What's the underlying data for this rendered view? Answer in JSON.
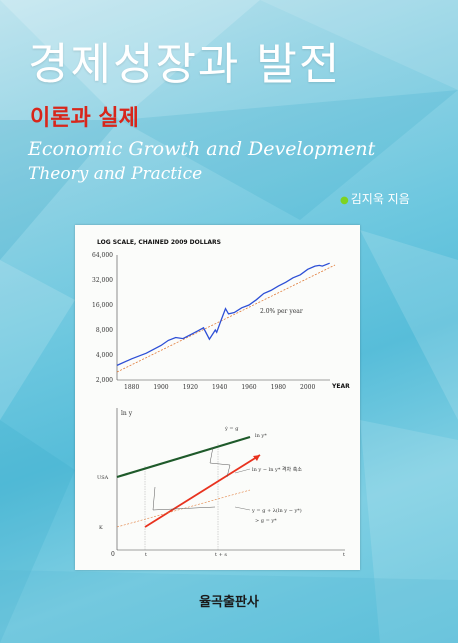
{
  "cover": {
    "title": "경제성장과 발전",
    "subtitle": "이론과 실제",
    "english_title": "Economic Growth and Development",
    "english_subtitle": "Theory and Practice",
    "author": "김지욱 지음",
    "publisher": "율곡출판사",
    "colors": {
      "background": "#5fc2dc",
      "subtitle": "#d8261b",
      "author_dot": "#7ed321"
    }
  },
  "figure_top": {
    "title": "LOG SCALE, CHAINED 2009 DOLLARS",
    "y_ticks": [
      "64,000",
      "32,000",
      "16,000",
      "8,000",
      "4,000",
      "2,000"
    ],
    "x_ticks": [
      "1880",
      "1900",
      "1920",
      "1940",
      "1960",
      "1980",
      "2000"
    ],
    "x_label": "YEAR",
    "trend_label": "2.0% per year"
  },
  "figure_bottom": {
    "y_label": "ln y",
    "label_growth": "ẏ = g",
    "label_frontier": "ln y*",
    "label_usa": "USA",
    "label_kor": "K",
    "label_gap": "ln y − ln y* 격차 축소",
    "label_eq1": "y = g + λ(ln y − y*)",
    "label_eq2": "> g = y*",
    "label_origin": "0",
    "label_t": "t",
    "label_tplus": "t + s",
    "label_time": "t"
  },
  "chart_data": {
    "type": "line",
    "title": "LOG SCALE, CHAINED 2009 DOLLARS",
    "xlabel": "YEAR",
    "ylabel": "",
    "log_scale": true,
    "xlim": [
      1870,
      2020
    ],
    "ylim": [
      2000,
      64000
    ],
    "series": [
      {
        "values_x": [
          1870,
          1880,
          1890,
          1900,
          1905,
          1910,
          1915,
          1920,
          1925,
          1929,
          1933,
          1937,
          1938,
          1941,
          1944,
          1946,
          1950,
          1955,
          1960,
          1965,
          1970,
          1975,
          1980,
          1985,
          1990,
          1995,
          2000,
          2005,
          2008,
          2010,
          2015
        ],
        "values_y": [
          3000,
          3600,
          4200,
          5200,
          6000,
          6500,
          6300,
          7000,
          7800,
          8500,
          6200,
          8000,
          7500,
          10500,
          14500,
          12500,
          13000,
          14800,
          16000,
          18500,
          22000,
          24000,
          27000,
          30000,
          34000,
          37000,
          43000,
          47000,
          48000,
          47000,
          51000
        ]
      }
    ]
  }
}
